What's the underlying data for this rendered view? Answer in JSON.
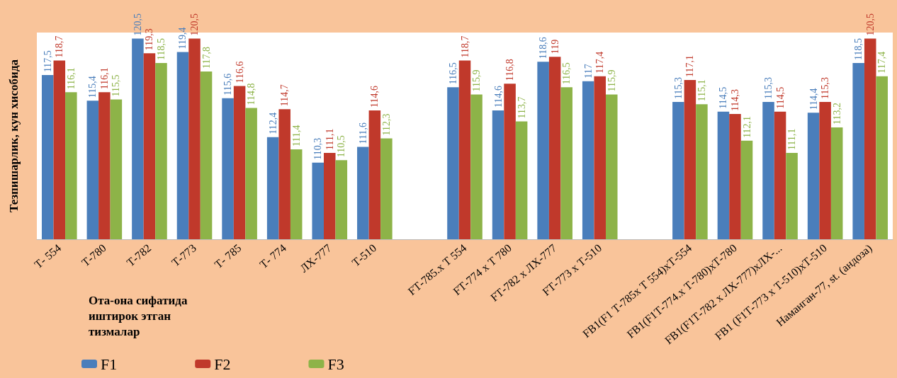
{
  "chart_data": {
    "type": "bar",
    "ylabel": "Тезпишарлик, кун хисобида",
    "xlabel": "Ота-она сифатида иштирок этган тизмалар",
    "categories": [
      "Т- 554",
      "Т-780",
      "Т-782",
      "Т-773",
      "Т- 785",
      "Т- 774",
      "ЛХ-777",
      "Т-510",
      null,
      "FТ-785.x Т 554",
      "FТ-774 x Т 780",
      "FТ-782 x ЛХ-777",
      "FТ-773 x Т-510",
      null,
      "FB1(F1 Т-785x Т 554)xТ-554",
      "FB1(F1Т-774.x Т-780)xТ-780",
      "FB1(F1Т-782 x ЛХ-777)xЛХ-...",
      "FB1 (F1Т-773 x Т-510)xТ-510",
      "Наманган-77, st. (андоза)"
    ],
    "series": [
      {
        "name": "F1",
        "color": "#4a7ebb",
        "values": [
          117.5,
          115.4,
          120.5,
          119.4,
          115.6,
          112.4,
          110.3,
          111.6,
          null,
          116.5,
          114.6,
          118.6,
          117,
          null,
          115.3,
          114.5,
          115.3,
          114.4,
          118.5
        ],
        "value_labels": [
          "117,5",
          "115,4",
          "120,5",
          "119,4",
          "115,6",
          "112,4",
          "110,3",
          "111,6",
          null,
          "116,5",
          "114,6",
          "118,6",
          "117",
          null,
          "115,3",
          "114,5",
          "115,3",
          "114,4",
          "118,5"
        ]
      },
      {
        "name": "F2",
        "color": "#c0392b",
        "values": [
          118.7,
          116.1,
          119.3,
          120.5,
          116.6,
          114.7,
          111.1,
          114.6,
          null,
          118.7,
          116.8,
          119,
          117.4,
          null,
          117.1,
          114.3,
          114.5,
          115.3,
          120.5
        ],
        "value_labels": [
          "118,7",
          "116,1",
          "119,3",
          "120,5",
          "116,6",
          "114,7",
          "111,1",
          "114,6",
          null,
          "118,7",
          "116,8",
          "119",
          "117,4",
          null,
          "117,1",
          "114,3",
          "114,5",
          "115,3",
          "120,5"
        ]
      },
      {
        "name": "F3",
        "color": "#8db348",
        "values": [
          116.1,
          115.5,
          118.5,
          117.8,
          114.8,
          111.4,
          110.5,
          112.3,
          null,
          115.9,
          113.7,
          116.5,
          115.9,
          null,
          115.1,
          112.1,
          111.1,
          113.2,
          117.4
        ],
        "value_labels": [
          "116,1",
          "115,5",
          "118,5",
          "117,8",
          "114,8",
          "111,4",
          "110,5",
          "112,3",
          null,
          "115,9",
          "113,7",
          "116,5",
          "115,9",
          null,
          "115,1",
          "112,1",
          "111,1",
          "113,2",
          "117,4"
        ]
      }
    ],
    "ylim": [
      104,
      121
    ],
    "tick_labels": "x",
    "legend": "bottom left"
  }
}
